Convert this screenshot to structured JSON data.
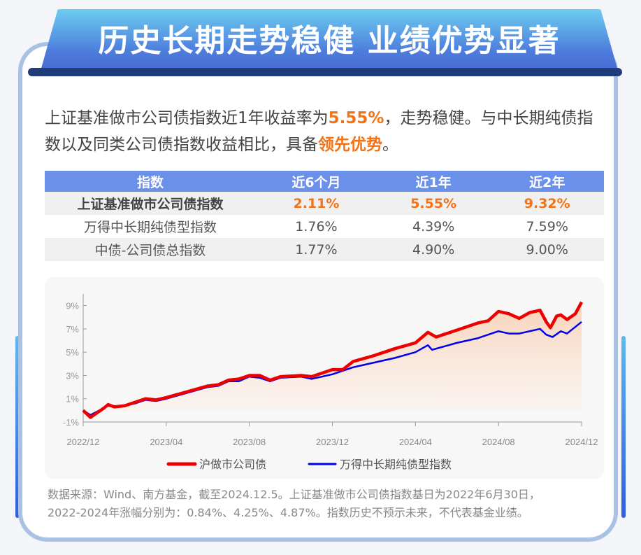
{
  "header": {
    "title": "历史长期走势稳健 业绩优势显著"
  },
  "intro": {
    "p1": "上证基准做市公司债指数近1年收益率为",
    "v1": "5.55%",
    "p2": "，走势稳健。与中长期纯债指数以及同类公司债指数收益相比，具备",
    "v2": "领先优势",
    "p3": "。"
  },
  "table": {
    "headers": [
      "指数",
      "近6个月",
      "近1年",
      "近2年"
    ],
    "rows": [
      [
        "上证基准做市公司债指数",
        "2.11%",
        "5.55%",
        "9.32%"
      ],
      [
        "万得中长期纯债型指数",
        "1.76%",
        "4.39%",
        "7.59%"
      ],
      [
        "中债-公司债总指数",
        "1.77%",
        "4.90%",
        "9.00%"
      ]
    ]
  },
  "colors": {
    "accent": "#f47216",
    "red_series": "#ee0000",
    "blue_series": "#0000ee",
    "header_bg": "#6b90ea"
  },
  "chart_data": {
    "type": "line",
    "ylim": [
      -1,
      10
    ],
    "y_ticks": [
      "-1%",
      "1%",
      "3%",
      "5%",
      "7%",
      "9%"
    ],
    "y_tick_values": [
      -1,
      1,
      3,
      5,
      7,
      9
    ],
    "x_ticks": [
      "2022/12",
      "2023/04",
      "2023/08",
      "2023/12",
      "2024/04",
      "2024/08",
      "2024/12"
    ],
    "x_tick_months": [
      0,
      4,
      8,
      12,
      16,
      20,
      24
    ],
    "x_unit": "months since 2022/12",
    "grid": false,
    "legend": "bottom",
    "series": [
      {
        "name": "沪做市公司债",
        "color": "#ee0000",
        "area": true,
        "points": [
          [
            0,
            0
          ],
          [
            0.35,
            -0.6
          ],
          [
            1,
            0.2
          ],
          [
            1.2,
            0.5
          ],
          [
            1.5,
            0.3
          ],
          [
            2,
            0.4
          ],
          [
            2.5,
            0.7
          ],
          [
            3,
            1.0
          ],
          [
            3.5,
            0.9
          ],
          [
            4,
            1.1
          ],
          [
            5,
            1.6
          ],
          [
            6,
            2.1
          ],
          [
            6.5,
            2.2
          ],
          [
            7,
            2.6
          ],
          [
            7.5,
            2.7
          ],
          [
            8,
            3.0
          ],
          [
            8.5,
            3.0
          ],
          [
            9,
            2.6
          ],
          [
            9.5,
            2.9
          ],
          [
            10.5,
            3.0
          ],
          [
            11,
            2.9
          ],
          [
            12,
            3.5
          ],
          [
            12.5,
            3.5
          ],
          [
            13,
            4.2
          ],
          [
            14,
            4.7
          ],
          [
            15,
            5.3
          ],
          [
            16,
            5.8
          ],
          [
            16.6,
            6.7
          ],
          [
            17,
            6.3
          ],
          [
            18,
            6.9
          ],
          [
            19,
            7.5
          ],
          [
            19.5,
            7.7
          ],
          [
            20,
            8.5
          ],
          [
            20.5,
            8.3
          ],
          [
            21,
            7.9
          ],
          [
            21.5,
            8.4
          ],
          [
            22,
            8.6
          ],
          [
            22.3,
            7.6
          ],
          [
            22.5,
            7.1
          ],
          [
            22.8,
            8.1
          ],
          [
            23,
            8.2
          ],
          [
            23.3,
            7.8
          ],
          [
            23.7,
            8.3
          ],
          [
            24,
            9.3
          ]
        ]
      },
      {
        "name": "万得中长期纯债型指数",
        "color": "#0000ee",
        "area": false,
        "points": [
          [
            0,
            0
          ],
          [
            0.35,
            -0.4
          ],
          [
            1,
            0.2
          ],
          [
            1.2,
            0.4
          ],
          [
            1.5,
            0.3
          ],
          [
            2,
            0.4
          ],
          [
            2.5,
            0.6
          ],
          [
            3,
            0.9
          ],
          [
            3.5,
            0.8
          ],
          [
            4,
            1.0
          ],
          [
            5,
            1.5
          ],
          [
            6,
            2.0
          ],
          [
            6.5,
            2.1
          ],
          [
            7,
            2.5
          ],
          [
            7.5,
            2.5
          ],
          [
            8,
            2.9
          ],
          [
            8.5,
            2.8
          ],
          [
            9,
            2.5
          ],
          [
            9.5,
            2.8
          ],
          [
            10.5,
            2.9
          ],
          [
            11,
            2.7
          ],
          [
            12,
            3.1
          ],
          [
            13,
            3.7
          ],
          [
            14,
            4.1
          ],
          [
            15,
            4.5
          ],
          [
            16,
            5.0
          ],
          [
            16.6,
            5.6
          ],
          [
            16.8,
            5.2
          ],
          [
            18,
            5.8
          ],
          [
            19,
            6.2
          ],
          [
            20,
            6.8
          ],
          [
            20.5,
            6.6
          ],
          [
            21,
            6.6
          ],
          [
            22,
            7.0
          ],
          [
            22.3,
            6.5
          ],
          [
            22.6,
            6.3
          ],
          [
            23,
            6.8
          ],
          [
            23.3,
            6.6
          ],
          [
            24,
            7.6
          ]
        ]
      }
    ]
  },
  "note": {
    "line1": "数据来源：Wind、南方基金，截至2024.12.5。上证基准做市公司债指数基日为2022年6月30日，",
    "line2": "2022-2024年涨幅分别为：0.84%、4.25%、4.87%。指数历史不预示未来，不代表基金业绩。"
  }
}
